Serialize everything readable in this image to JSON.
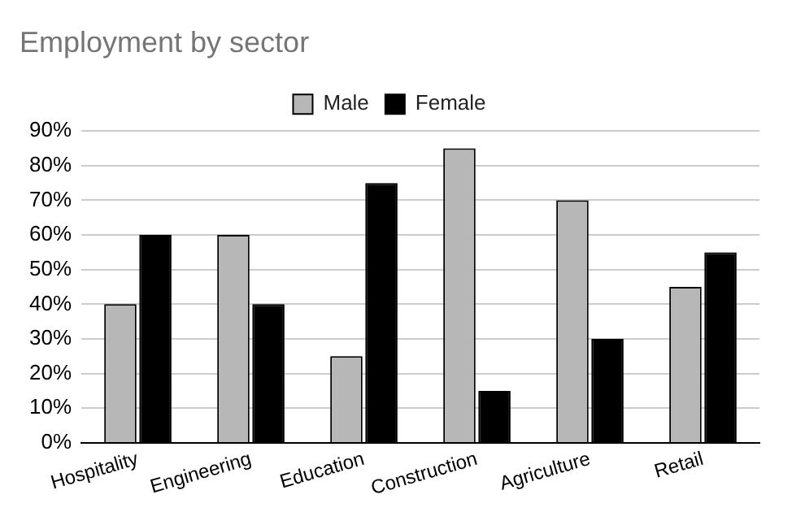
{
  "chart_data": {
    "type": "bar",
    "title": "Employment by sector",
    "categories": [
      "Hospitality",
      "Engineering",
      "Education",
      "Construction",
      "Agriculture",
      "Retail"
    ],
    "series": [
      {
        "name": "Male",
        "color": "#b7b7b7",
        "values": [
          40,
          60,
          25,
          85,
          70,
          45
        ]
      },
      {
        "name": "Female",
        "color": "#000000",
        "values": [
          60,
          40,
          75,
          15,
          30,
          55
        ]
      }
    ],
    "ylim": [
      0,
      90
    ],
    "yticks": [
      {
        "value": 0,
        "label": "0%"
      },
      {
        "value": 10,
        "label": "10%"
      },
      {
        "value": 20,
        "label": "20%"
      },
      {
        "value": 30,
        "label": "30%"
      },
      {
        "value": 40,
        "label": "40%"
      },
      {
        "value": 50,
        "label": "50%"
      },
      {
        "value": 60,
        "label": "60%"
      },
      {
        "value": 70,
        "label": "70%"
      },
      {
        "value": 80,
        "label": "80%"
      },
      {
        "value": 90,
        "label": "90%"
      }
    ],
    "grid": "y",
    "legend": "top"
  }
}
